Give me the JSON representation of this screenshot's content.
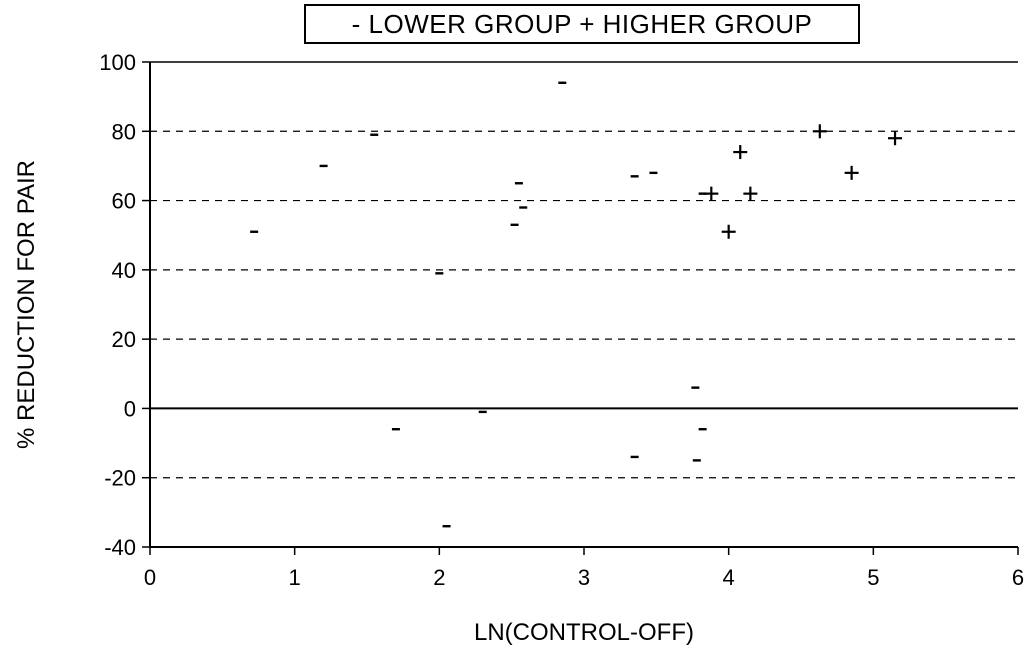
{
  "chart_data": {
    "type": "scatter",
    "title": "",
    "legend_text": "- LOWER GROUP + HIGHER GROUP",
    "legend_position": "top-center",
    "xlabel": "LN(CONTROL-OFF)",
    "ylabel": "% REDUCTION FOR PAIR",
    "xlim": [
      0,
      6
    ],
    "ylim": [
      -40,
      100
    ],
    "x_ticks": [
      "0",
      "1",
      "2",
      "3",
      "4",
      "5",
      "6"
    ],
    "y_ticks": [
      "100",
      "80",
      "60",
      "40",
      "20",
      "0",
      "-20",
      "-40"
    ],
    "grid": "horizontal dashed",
    "series": [
      {
        "name": "LOWER GROUP",
        "marker": "-",
        "x": [
          0.72,
          1.2,
          1.55,
          1.7,
          2.0,
          2.05,
          2.3,
          2.52,
          2.55,
          2.58,
          2.85,
          3.35,
          3.35,
          3.48,
          3.77,
          3.78,
          3.82,
          3.82
        ],
        "y": [
          51,
          70,
          79,
          -6,
          39,
          -34,
          -1,
          53,
          65,
          58,
          94,
          67,
          -14,
          68,
          6,
          -15,
          -6,
          62
        ]
      },
      {
        "name": "HIGHER GROUP",
        "marker": "+",
        "x": [
          3.88,
          4.0,
          4.08,
          4.15,
          4.63,
          4.85,
          5.15
        ],
        "y": [
          62,
          51,
          74,
          62,
          80,
          68,
          78
        ]
      }
    ]
  }
}
